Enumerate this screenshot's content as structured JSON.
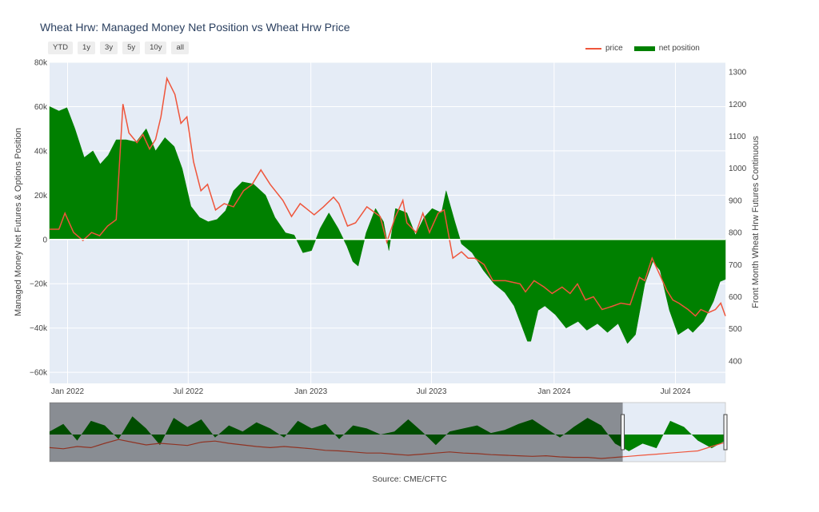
{
  "title": "Wheat Hrw: Managed Money Net Position vs Wheat Hrw Price",
  "range_buttons": [
    "YTD",
    "1y",
    "3y",
    "5y",
    "10y",
    "all"
  ],
  "legend": {
    "price": "price",
    "net": "net position"
  },
  "source": "Source: CME/CFTC",
  "colors": {
    "price": "#ef553b",
    "net": "#008000",
    "plot_bg": "#e5ecf6"
  },
  "chart_data": {
    "type": "line",
    "y_left_label": "Managed Money Net Futures & Options Position",
    "y_right_label": "Front Month Wheat Hrw Futures Continuous",
    "y_left_range": [
      -65000,
      80000
    ],
    "y_right_range": [
      330,
      1330
    ],
    "x_range": [
      "2021-12-05",
      "2024-09-14"
    ],
    "x_ticks": [
      {
        "date": "2022-01-01",
        "label": "Jan 2022"
      },
      {
        "date": "2022-07-01",
        "label": "Jul 2022"
      },
      {
        "date": "2023-01-01",
        "label": "Jan 2023"
      },
      {
        "date": "2023-07-01",
        "label": "Jul 2023"
      },
      {
        "date": "2024-01-01",
        "label": "Jan 2024"
      },
      {
        "date": "2024-07-01",
        "label": "Jul 2024"
      }
    ],
    "y_left_ticks": [
      80000,
      60000,
      40000,
      20000,
      0,
      -20000,
      -40000,
      -60000
    ],
    "y_left_tick_labels": [
      "80k",
      "60k",
      "40k",
      "20k",
      "0",
      "−20k",
      "−40k",
      "−60k"
    ],
    "y_right_ticks": [
      1300,
      1200,
      1100,
      1000,
      900,
      800,
      700,
      600,
      500,
      400
    ],
    "net_position": [
      [
        "2021-12-05",
        60000
      ],
      [
        "2021-12-19",
        58000
      ],
      [
        "2021-12-31",
        59500
      ],
      [
        "2022-01-12",
        50000
      ],
      [
        "2022-01-26",
        37000
      ],
      [
        "2022-02-08",
        40000
      ],
      [
        "2022-02-19",
        34000
      ],
      [
        "2022-03-03",
        38000
      ],
      [
        "2022-03-15",
        45000
      ],
      [
        "2022-03-30",
        45000
      ],
      [
        "2022-04-14",
        44000
      ],
      [
        "2022-04-29",
        50000
      ],
      [
        "2022-05-13",
        40000
      ],
      [
        "2022-05-27",
        46000
      ],
      [
        "2022-06-10",
        42000
      ],
      [
        "2022-06-22",
        32000
      ],
      [
        "2022-07-05",
        15000
      ],
      [
        "2022-07-18",
        10000
      ],
      [
        "2022-07-31",
        8000
      ],
      [
        "2022-08-13",
        9000
      ],
      [
        "2022-08-26",
        13000
      ],
      [
        "2022-09-07",
        22000
      ],
      [
        "2022-09-20",
        26000
      ],
      [
        "2022-10-07",
        25000
      ],
      [
        "2022-10-25",
        20000
      ],
      [
        "2022-11-08",
        10000
      ],
      [
        "2022-11-24",
        3000
      ],
      [
        "2022-12-07",
        2000
      ],
      [
        "2022-12-20",
        -6000
      ],
      [
        "2023-01-02",
        -5000
      ],
      [
        "2023-01-15",
        5000
      ],
      [
        "2023-01-28",
        12000
      ],
      [
        "2023-02-11",
        5000
      ],
      [
        "2023-02-24",
        -3000
      ],
      [
        "2023-03-05",
        -10000
      ],
      [
        "2023-03-13",
        -12000
      ],
      [
        "2023-03-25",
        3000
      ],
      [
        "2023-04-08",
        14000
      ],
      [
        "2023-04-20",
        8000
      ],
      [
        "2023-04-28",
        -5000
      ],
      [
        "2023-05-08",
        14000
      ],
      [
        "2023-05-25",
        12000
      ],
      [
        "2023-06-07",
        2000
      ],
      [
        "2023-06-20",
        10000
      ],
      [
        "2023-07-02",
        14000
      ],
      [
        "2023-07-16",
        12000
      ],
      [
        "2023-07-23",
        22000
      ],
      [
        "2023-08-05",
        8000
      ],
      [
        "2023-08-15",
        -2000
      ],
      [
        "2023-08-31",
        -6000
      ],
      [
        "2023-09-17",
        -14000
      ],
      [
        "2023-10-03",
        -20000
      ],
      [
        "2023-10-19",
        -24000
      ],
      [
        "2023-11-02",
        -30000
      ],
      [
        "2023-11-12",
        -38000
      ],
      [
        "2023-11-22",
        -46000
      ],
      [
        "2023-11-27",
        -46000
      ],
      [
        "2023-12-08",
        -32000
      ],
      [
        "2023-12-18",
        -30000
      ],
      [
        "2024-01-03",
        -34000
      ],
      [
        "2024-01-19",
        -40000
      ],
      [
        "2024-02-06",
        -37000
      ],
      [
        "2024-02-19",
        -41000
      ],
      [
        "2024-03-06",
        -38000
      ],
      [
        "2024-03-21",
        -42000
      ],
      [
        "2024-04-06",
        -38000
      ],
      [
        "2024-04-20",
        -47000
      ],
      [
        "2024-05-02",
        -43000
      ],
      [
        "2024-05-16",
        -20000
      ],
      [
        "2024-05-28",
        -10000
      ],
      [
        "2024-06-08",
        -14000
      ],
      [
        "2024-06-22",
        -32000
      ],
      [
        "2024-07-05",
        -43000
      ],
      [
        "2024-07-20",
        -40000
      ],
      [
        "2024-07-27",
        -42000
      ],
      [
        "2024-08-12",
        -37000
      ],
      [
        "2024-08-27",
        -28000
      ],
      [
        "2024-09-06",
        -19000
      ],
      [
        "2024-09-14",
        -18000
      ]
    ],
    "price": [
      [
        "2021-12-05",
        810
      ],
      [
        "2021-12-19",
        810
      ],
      [
        "2021-12-28",
        860
      ],
      [
        "2022-01-10",
        800
      ],
      [
        "2022-01-24",
        775
      ],
      [
        "2022-02-06",
        800
      ],
      [
        "2022-02-18",
        790
      ],
      [
        "2022-03-02",
        820
      ],
      [
        "2022-03-15",
        840
      ],
      [
        "2022-03-25",
        1200
      ],
      [
        "2022-04-03",
        1110
      ],
      [
        "2022-04-15",
        1080
      ],
      [
        "2022-04-24",
        1105
      ],
      [
        "2022-05-04",
        1060
      ],
      [
        "2022-05-13",
        1090
      ],
      [
        "2022-05-21",
        1160
      ],
      [
        "2022-05-30",
        1280
      ],
      [
        "2022-06-11",
        1230
      ],
      [
        "2022-06-20",
        1140
      ],
      [
        "2022-06-29",
        1160
      ],
      [
        "2022-07-09",
        1020
      ],
      [
        "2022-07-20",
        930
      ],
      [
        "2022-07-30",
        950
      ],
      [
        "2022-08-11",
        870
      ],
      [
        "2022-08-24",
        890
      ],
      [
        "2022-09-07",
        880
      ],
      [
        "2022-09-22",
        930
      ],
      [
        "2022-10-05",
        950
      ],
      [
        "2022-10-18",
        995
      ],
      [
        "2022-11-01",
        950
      ],
      [
        "2022-11-20",
        900
      ],
      [
        "2022-12-03",
        850
      ],
      [
        "2022-12-16",
        890
      ],
      [
        "2023-01-06",
        855
      ],
      [
        "2023-01-20",
        880
      ],
      [
        "2023-02-04",
        910
      ],
      [
        "2023-02-12",
        890
      ],
      [
        "2023-02-25",
        820
      ],
      [
        "2023-03-09",
        830
      ],
      [
        "2023-03-26",
        880
      ],
      [
        "2023-04-15",
        850
      ],
      [
        "2023-04-25",
        770
      ],
      [
        "2023-05-08",
        850
      ],
      [
        "2023-05-19",
        900
      ],
      [
        "2023-05-25",
        830
      ],
      [
        "2023-06-08",
        800
      ],
      [
        "2023-06-18",
        860
      ],
      [
        "2023-06-28",
        800
      ],
      [
        "2023-07-11",
        860
      ],
      [
        "2023-07-20",
        870
      ],
      [
        "2023-08-02",
        720
      ],
      [
        "2023-08-15",
        740
      ],
      [
        "2023-08-25",
        720
      ],
      [
        "2023-09-04",
        720
      ],
      [
        "2023-09-18",
        700
      ],
      [
        "2023-10-01",
        650
      ],
      [
        "2023-10-20",
        650
      ],
      [
        "2023-11-11",
        640
      ],
      [
        "2023-11-19",
        615
      ],
      [
        "2023-12-02",
        650
      ],
      [
        "2023-12-17",
        630
      ],
      [
        "2023-12-29",
        610
      ],
      [
        "2024-01-13",
        630
      ],
      [
        "2024-01-25",
        610
      ],
      [
        "2024-02-05",
        640
      ],
      [
        "2024-02-17",
        590
      ],
      [
        "2024-02-29",
        600
      ],
      [
        "2024-03-13",
        560
      ],
      [
        "2024-03-28",
        570
      ],
      [
        "2024-04-10",
        580
      ],
      [
        "2024-04-24",
        575
      ],
      [
        "2024-05-08",
        660
      ],
      [
        "2024-05-16",
        650
      ],
      [
        "2024-05-27",
        720
      ],
      [
        "2024-06-05",
        680
      ],
      [
        "2024-06-18",
        620
      ],
      [
        "2024-06-27",
        590
      ],
      [
        "2024-07-06",
        580
      ],
      [
        "2024-07-20",
        560
      ],
      [
        "2024-07-31",
        540
      ],
      [
        "2024-08-08",
        560
      ],
      [
        "2024-08-19",
        550
      ],
      [
        "2024-08-30",
        560
      ],
      [
        "2024-09-07",
        580
      ],
      [
        "2024-09-14",
        540
      ]
    ],
    "rangeslider": {
      "selected_fraction_start": 0.848,
      "net_profile": [
        0.1,
        0.35,
        -0.2,
        0.45,
        0.3,
        -0.15,
        0.6,
        0.2,
        -0.35,
        0.55,
        0.25,
        0.5,
        -0.1,
        0.3,
        0.1,
        0.4,
        0.2,
        -0.1,
        0.45,
        0.2,
        0.35,
        -0.15,
        0.3,
        0.2,
        0.0,
        0.1,
        0.5,
        0.1,
        -0.35,
        0.1,
        0.2,
        0.3,
        0.05,
        0.15,
        0.35,
        0.5,
        0.2,
        -0.1,
        0.25,
        0.55,
        0.3,
        -0.3,
        -0.55,
        -0.3,
        -0.45,
        0.45,
        0.25,
        -0.2,
        -0.45,
        -0.2
      ],
      "price_profile": [
        0.2,
        0.18,
        0.22,
        0.2,
        0.28,
        0.35,
        0.3,
        0.25,
        0.28,
        0.26,
        0.24,
        0.3,
        0.32,
        0.28,
        0.25,
        0.22,
        0.2,
        0.22,
        0.2,
        0.18,
        0.15,
        0.14,
        0.12,
        0.1,
        0.1,
        0.08,
        0.06,
        0.08,
        0.1,
        0.12,
        0.1,
        0.09,
        0.07,
        0.06,
        0.05,
        0.04,
        0.05,
        0.03,
        0.02,
        0.02,
        0.0,
        0.02,
        0.04,
        0.06,
        0.08,
        0.1,
        0.12,
        0.14,
        0.22,
        0.3
      ]
    }
  }
}
